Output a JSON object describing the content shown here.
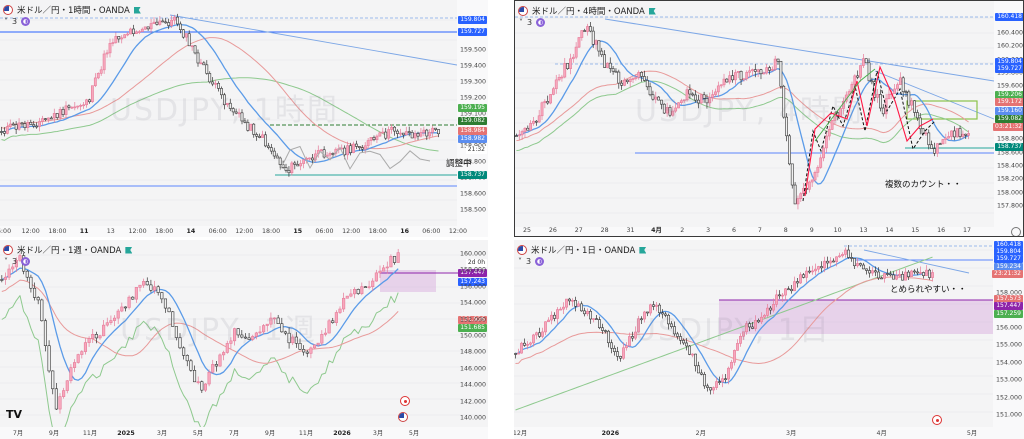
{
  "panes": {
    "h1": {
      "header": "米ドル／円・1時間・OANDA",
      "indicator_count": "3",
      "watermark": "USDJPY, 1時間",
      "price_labels": [
        "159.500",
        "159.400",
        "159.300",
        "159.200",
        "159.100",
        "159.000",
        "158.900",
        "158.800",
        "158.700",
        "158.600",
        "158.500"
      ],
      "tags": [
        {
          "text": "159.804",
          "color": "#2962ff"
        },
        {
          "text": "159.727",
          "color": "#2962ff"
        },
        {
          "text": "159.195",
          "color": "#4caf50"
        },
        {
          "text": "159.082",
          "color": "#2e7d32"
        },
        {
          "text": "158.984",
          "color": "#e57373"
        },
        {
          "text": "158.982",
          "color": "#5b8def"
        },
        {
          "text": "21:32",
          "color": "#ffffff"
        },
        {
          "text": "158.737",
          "color": "#00897b"
        }
      ],
      "time_labels": [
        "6:00",
        "12:00",
        "18:00",
        "11",
        "13",
        "12:00",
        "18:00",
        "14",
        "06:00",
        "12:00",
        "18:00",
        "15",
        "06:00",
        "12:00",
        "18:00",
        "16",
        "06:00",
        "12:00"
      ],
      "note": "調整中"
    },
    "h4": {
      "header": "米ドル／円・4時間・OANDA",
      "indicator_count": "3",
      "watermark": "USDJPY, 4時間",
      "price_labels": [
        "160.400",
        "160.200",
        "160.000",
        "159.800",
        "159.600",
        "159.400",
        "159.200",
        "159.000",
        "158.800",
        "158.600",
        "158.400",
        "158.200",
        "158.000",
        "157.800"
      ],
      "tags": [
        {
          "text": "160.418",
          "color": "#2962ff"
        },
        {
          "text": "159.804",
          "color": "#2962ff"
        },
        {
          "text": "159.727",
          "color": "#2962ff"
        },
        {
          "text": "159.206",
          "color": "#4caf50"
        },
        {
          "text": "159.172",
          "color": "#e57373"
        },
        {
          "text": "159.160",
          "color": "#5b8def"
        },
        {
          "text": "159.082",
          "color": "#2e7d32"
        },
        {
          "text": "03:21:32",
          "color": "#e57373"
        },
        {
          "text": "158.737",
          "color": "#00897b"
        }
      ],
      "time_labels": [
        "25",
        "26",
        "27",
        "28",
        "31",
        "4月",
        "2",
        "3",
        "6",
        "7",
        "8",
        "9",
        "10",
        "13",
        "14",
        "15",
        "16",
        "17"
      ],
      "note": "複数のカウント・・"
    },
    "w1": {
      "header": "米ドル／円・1週・OANDA",
      "indicator_count": "3",
      "watermark": "USDJPY, 1週",
      "price_labels": [
        "160.000",
        "158.000",
        "156.000",
        "154.000",
        "152.000",
        "150.000",
        "148.000",
        "146.000",
        "144.000",
        "142.000",
        "140.000"
      ],
      "tags": [
        {
          "text": "2d 0h",
          "color": "#ffffff"
        },
        {
          "text": "157.447",
          "color": "#8e24aa"
        },
        {
          "text": "157.243",
          "color": "#2962ff"
        },
        {
          "text": "151.926",
          "color": "#e57373"
        },
        {
          "text": "151.685",
          "color": "#4caf50"
        }
      ],
      "time_labels": [
        "7月",
        "9月",
        "11月",
        "2025",
        "3月",
        "5月",
        "7月",
        "9月",
        "11月",
        "2026",
        "3月",
        "5月"
      ]
    },
    "d1": {
      "header": "米ドル／円・1日・OANDA",
      "indicator_count": "3",
      "watermark": "USDJPY, 1日",
      "price_labels": [
        "160.000",
        "159.000",
        "158.000",
        "157.000",
        "156.000",
        "155.000",
        "154.000",
        "153.000",
        "152.000",
        "151.000"
      ],
      "tags": [
        {
          "text": "160.418",
          "color": "#2962ff"
        },
        {
          "text": "159.804",
          "color": "#2962ff"
        },
        {
          "text": "159.727",
          "color": "#2962ff"
        },
        {
          "text": "159.234",
          "color": "#5b8def"
        },
        {
          "text": "23:21:32",
          "color": "#e57373"
        },
        {
          "text": "157.573",
          "color": "#e57373"
        },
        {
          "text": "157.447",
          "color": "#8e24aa"
        },
        {
          "text": "157.259",
          "color": "#4caf50"
        }
      ],
      "time_labels": [
        "12月",
        "2026",
        "2月",
        "3月",
        "4月",
        "5月"
      ],
      "note": "とめられやすい・・"
    }
  },
  "colors": {
    "up_candle": "#f7a8bd",
    "down_candle": "#3a3a3a",
    "ma_blue": "#5b9be8",
    "ma_red": "#e89a9a",
    "ma_green": "#8ec98e",
    "trend_blue": "#7da7e6",
    "support_teal": "#26a69a",
    "zone_purple": "#ce93d8"
  },
  "icons": {
    "flag": "us-japan-flag-icon",
    "market_status": "market-open-icon",
    "chevron": "chevron-down-icon",
    "settings": "gear-icon",
    "alert": "alert-circle-icon",
    "tradingview": "tradingview-logo"
  }
}
